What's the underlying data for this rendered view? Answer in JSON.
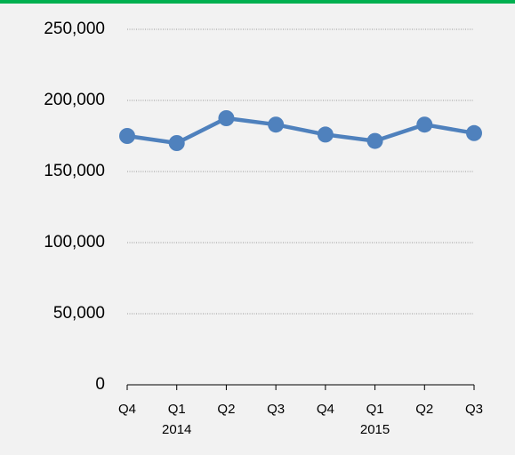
{
  "chart_data": {
    "type": "line",
    "categories": [
      "Q4",
      "Q1",
      "Q2",
      "Q3",
      "Q4",
      "Q1",
      "Q2",
      "Q3"
    ],
    "sublabels": [
      null,
      "2014",
      null,
      null,
      null,
      "2015",
      null,
      null
    ],
    "series": [
      {
        "color": "#4f81bd",
        "values": [
          175000,
          170000,
          187500,
          183000,
          176000,
          171500,
          183000,
          177000
        ]
      }
    ],
    "ylim": [
      0,
      250000
    ],
    "yticks": [
      0,
      {
        "value": 50000,
        "label": "50,000"
      },
      {
        "value": 100000,
        "label": "100,000"
      },
      {
        "value": 150000,
        "label": "150,000"
      },
      {
        "value": 200000,
        "label": "200,000"
      },
      {
        "value": 250000,
        "label": "250,000"
      }
    ],
    "grid": true
  }
}
